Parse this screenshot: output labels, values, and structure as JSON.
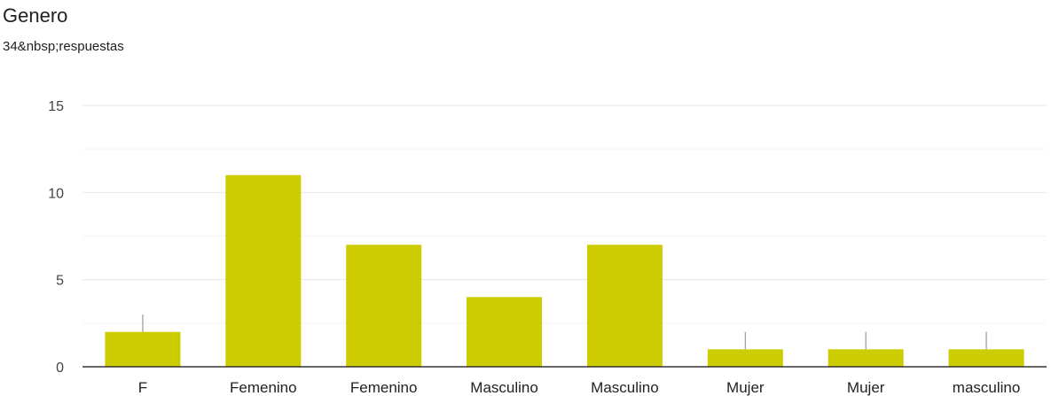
{
  "title": "Genero",
  "subtitle": "34&nbsp;respuestas",
  "bar_color": "#cccc00",
  "chart_data": {
    "type": "bar",
    "categories": [
      "F",
      "Femenino",
      "Femenino",
      "Masculino",
      "Masculino",
      "Mujer",
      "Mujer",
      "masculino"
    ],
    "values": [
      2,
      11,
      7,
      4,
      7,
      1,
      1,
      1
    ],
    "markers": [
      3,
      null,
      null,
      null,
      null,
      2,
      2,
      2
    ],
    "ylim": [
      0,
      15
    ],
    "yticks": [
      "0",
      "5",
      "10",
      "15"
    ],
    "grid": true,
    "legend": "none"
  }
}
